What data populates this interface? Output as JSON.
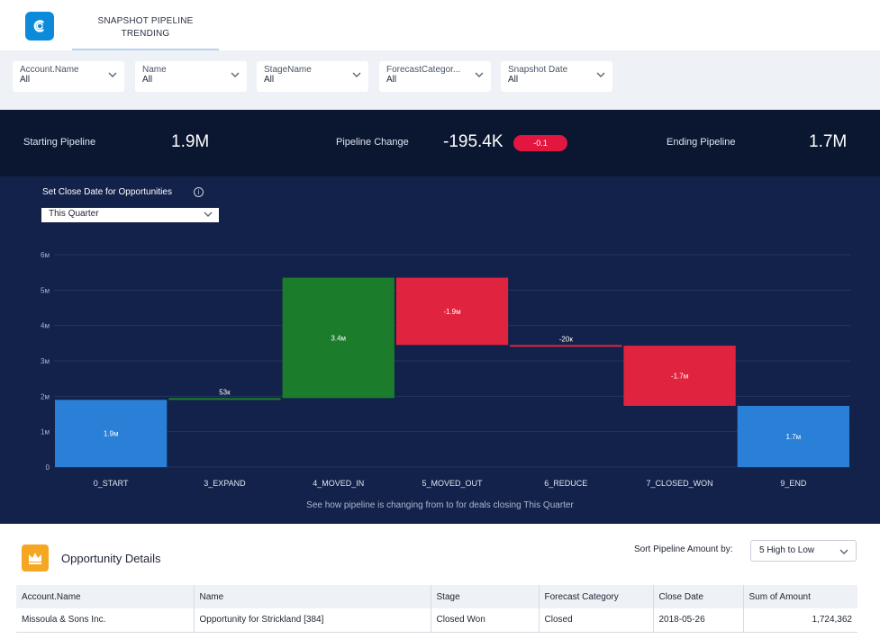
{
  "header": {
    "tab_label": "SNAPSHOT PIPELINE TRENDING"
  },
  "filters": [
    {
      "label": "Account.Name",
      "value": "All"
    },
    {
      "label": "Name",
      "value": "All"
    },
    {
      "label": "StageName",
      "value": "All"
    },
    {
      "label": "ForecastCategor...",
      "value": "All"
    },
    {
      "label": "Snapshot Date",
      "value": "All"
    }
  ],
  "summary": {
    "starting_label": "Starting Pipeline",
    "starting_value": "1.9M",
    "change_label": "Pipeline Change",
    "change_value": "-195.4K",
    "change_badge": "-0.1",
    "ending_label": "Ending Pipeline",
    "ending_value": "1.7M"
  },
  "controls": {
    "close_date_label": "Set Close Date for Opportunities",
    "close_date_value": "This Quarter"
  },
  "chart_caption": "See how pipeline is changing from  to  for deals closing This Quarter",
  "colors": {
    "total": "#2a7fd6",
    "increase": "#1b7d2b",
    "decrease": "#e0243f",
    "panel": "#13224a"
  },
  "chart_data": {
    "type": "bar",
    "subtype": "waterfall",
    "categories": [
      "0_START",
      "3_EXPAND",
      "4_MOVED_IN",
      "5_MOVED_OUT",
      "6_REDUCE",
      "7_CLOSED_WON",
      "9_END"
    ],
    "kinds": [
      "total",
      "increase",
      "increase",
      "decrease",
      "decrease",
      "decrease",
      "total"
    ],
    "starts": [
      0,
      1.9,
      1.95,
      5.35,
      3.45,
      3.43,
      0
    ],
    "ends": [
      1.9,
      1.95,
      5.35,
      3.45,
      3.43,
      1.73,
      1.73
    ],
    "labels": [
      "1.9м",
      "53к",
      "3.4м",
      "-1.9м",
      "-20к",
      "-1.7м",
      "1.7м"
    ],
    "ylim": [
      0,
      6
    ],
    "yticks": [
      "0",
      "1м",
      "2м",
      "3м",
      "4м",
      "5м",
      "6м"
    ]
  },
  "details": {
    "title": "Opportunity Details",
    "sort_label": "Sort Pipeline Amount by:",
    "sort_value": "5 High to Low",
    "columns": [
      "Account.Name",
      "Name",
      "Stage",
      "Forecast Category",
      "Close Date",
      "Sum of Amount"
    ],
    "rows": [
      [
        "Missoula & Sons Inc.",
        "Opportunity for Strickland [384]",
        "Closed Won",
        "Closed",
        "2018-05-26",
        "1,724,362"
      ]
    ]
  }
}
